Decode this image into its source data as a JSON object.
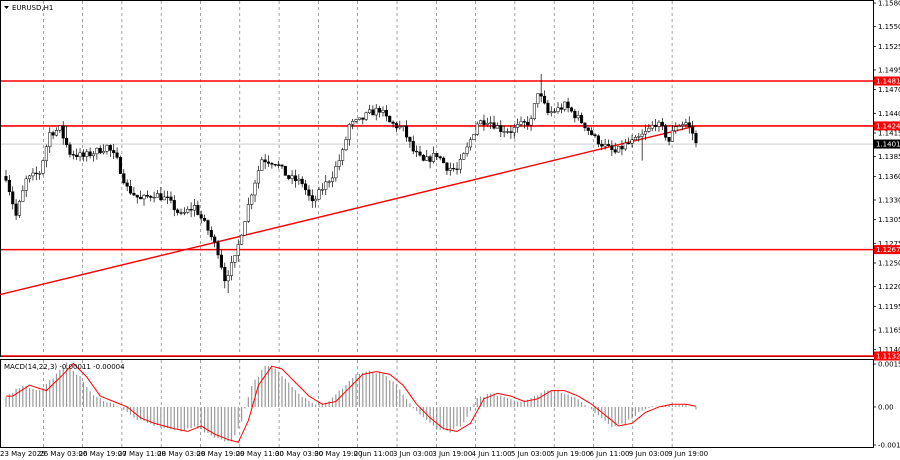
{
  "chart_data": {
    "type": "candlestick",
    "symbol_label": "EURUSD,H1",
    "ylim": [
      1.1132,
      1.158
    ],
    "y_ticks": [
      1.158,
      1.155,
      1.1525,
      1.1495,
      1.147,
      1.144,
      1.1415,
      1.1385,
      1.136,
      1.133,
      1.1305,
      1.1275,
      1.125,
      1.122,
      1.1195,
      1.1165,
      1.114
    ],
    "x_labels": [
      "23 May 2025",
      "26 May 03:00",
      "26 May 19:00",
      "27 May 11:00",
      "28 May 03:00",
      "28 May 19:00",
      "29 May 11:00",
      "30 May 03:00",
      "30 May 19:00",
      "2 Jun 11:00",
      "3 Jun 03:00",
      "3 Jun 19:00",
      "4 Jun 11:00",
      "5 Jun 03:00",
      "5 Jun 19:00",
      "6 Jun 11:00",
      "9 Jun 03:00",
      "9 Jun 19:00"
    ],
    "levels": [
      {
        "value": 1.1481,
        "label": "1.1481",
        "color": "#ff0000"
      },
      {
        "value": 1.1424,
        "label": "1.1424",
        "color": "#ff0000"
      },
      {
        "value": 1.1267,
        "label": "1.1267",
        "color": "#ff0000"
      },
      {
        "value": 1.1132,
        "label": "1.1132",
        "color": "#ff0000"
      }
    ],
    "current_price": {
      "value": 1.1401,
      "label": "1.1401"
    },
    "trendline": {
      "from_bar": 0,
      "from_price": 1.121,
      "to_bar": 205,
      "to_price": 1.1424,
      "color": "#ff0000"
    },
    "bar_count": 206,
    "anchors": [
      [
        0,
        1.136
      ],
      [
        3,
        1.131
      ],
      [
        6,
        1.1355
      ],
      [
        10,
        1.1365
      ],
      [
        13,
        1.1415
      ],
      [
        16,
        1.142
      ],
      [
        19,
        1.139
      ],
      [
        23,
        1.1385
      ],
      [
        27,
        1.1392
      ],
      [
        30,
        1.1398
      ],
      [
        33,
        1.138
      ],
      [
        36,
        1.1345
      ],
      [
        40,
        1.133
      ],
      [
        44,
        1.1338
      ],
      [
        48,
        1.133
      ],
      [
        52,
        1.131
      ],
      [
        56,
        1.1322
      ],
      [
        60,
        1.1292
      ],
      [
        63,
        1.1265
      ],
      [
        65,
        1.123
      ],
      [
        68,
        1.1255
      ],
      [
        70,
        1.129
      ],
      [
        73,
        1.134
      ],
      [
        76,
        1.1382
      ],
      [
        80,
        1.1378
      ],
      [
        84,
        1.1358
      ],
      [
        88,
        1.1352
      ],
      [
        91,
        1.1325
      ],
      [
        94,
        1.1345
      ],
      [
        97,
        1.1362
      ],
      [
        100,
        1.139
      ],
      [
        102,
        1.1425
      ],
      [
        105,
        1.143
      ],
      [
        108,
        1.144
      ],
      [
        111,
        1.1445
      ],
      [
        114,
        1.1428
      ],
      [
        118,
        1.142
      ],
      [
        121,
        1.1392
      ],
      [
        124,
        1.1378
      ],
      [
        128,
        1.1388
      ],
      [
        131,
        1.1372
      ],
      [
        134,
        1.1368
      ],
      [
        137,
        1.1395
      ],
      [
        140,
        1.1428
      ],
      [
        143,
        1.1432
      ],
      [
        147,
        1.142
      ],
      [
        150,
        1.1418
      ],
      [
        153,
        1.1425
      ],
      [
        156,
        1.143
      ],
      [
        158,
        1.1468
      ],
      [
        161,
        1.144
      ],
      [
        164,
        1.1445
      ],
      [
        166,
        1.145
      ],
      [
        169,
        1.1438
      ],
      [
        172,
        1.1425
      ],
      [
        175,
        1.1408
      ],
      [
        178,
        1.1398
      ],
      [
        181,
        1.139
      ],
      [
        184,
        1.14
      ],
      [
        187,
        1.1405
      ],
      [
        190,
        1.1415
      ],
      [
        193,
        1.1428
      ],
      [
        195,
        1.142
      ],
      [
        197,
        1.1405
      ],
      [
        199,
        1.1425
      ],
      [
        202,
        1.1428
      ],
      [
        204,
        1.1415
      ],
      [
        205,
        1.1401
      ]
    ],
    "spikes": [
      {
        "bar": 18,
        "high": 1.1424
      },
      {
        "bar": 66,
        "low": 1.1212
      },
      {
        "bar": 65,
        "low": 1.1218
      },
      {
        "bar": 159,
        "high": 1.149
      },
      {
        "bar": 166,
        "high": 1.1455
      },
      {
        "bar": 189,
        "low": 1.138
      }
    ],
    "macd": {
      "label": "MACD(14,22,3) -0.00011 -0.00004",
      "ylim": [
        -0.0014,
        0.00158
      ],
      "y_ticks": [
        {
          "value": 0.00158,
          "label": "0.00158"
        },
        {
          "value": 0.0,
          "label": "0.00"
        },
        {
          "value": -0.0014,
          "label": "-0.0014"
        }
      ],
      "anchors": [
        [
          0,
          0.0004
        ],
        [
          5,
          0.0008
        ],
        [
          10,
          0.0006
        ],
        [
          15,
          0.0012
        ],
        [
          18,
          0.0016
        ],
        [
          22,
          0.0011
        ],
        [
          26,
          0.0004
        ],
        [
          30,
          0.0002
        ],
        [
          34,
          0.0
        ],
        [
          38,
          -0.0004
        ],
        [
          42,
          -0.0006
        ],
        [
          48,
          -0.0008
        ],
        [
          52,
          -0.0009
        ],
        [
          56,
          -0.0007
        ],
        [
          60,
          -0.001
        ],
        [
          64,
          -0.0012
        ],
        [
          67,
          -0.0013
        ],
        [
          70,
          -0.0005
        ],
        [
          73,
          0.0008
        ],
        [
          77,
          0.0015
        ],
        [
          80,
          0.0014
        ],
        [
          84,
          0.0009
        ],
        [
          88,
          0.0004
        ],
        [
          92,
          0.0001
        ],
        [
          96,
          0.0002
        ],
        [
          100,
          0.0007
        ],
        [
          104,
          0.0012
        ],
        [
          108,
          0.0013
        ],
        [
          112,
          0.0012
        ],
        [
          116,
          0.0008
        ],
        [
          120,
          0.0001
        ],
        [
          124,
          -0.0004
        ],
        [
          128,
          -0.0008
        ],
        [
          132,
          -0.0009
        ],
        [
          136,
          -0.0006
        ],
        [
          140,
          0.0003
        ],
        [
          144,
          0.0005
        ],
        [
          148,
          0.0004
        ],
        [
          152,
          0.0002
        ],
        [
          156,
          0.0003
        ],
        [
          160,
          0.0006
        ],
        [
          164,
          0.0006
        ],
        [
          168,
          0.0004
        ],
        [
          172,
          0.0001
        ],
        [
          176,
          -0.0003
        ],
        [
          180,
          -0.0007
        ],
        [
          184,
          -0.0006
        ],
        [
          188,
          -0.0002
        ],
        [
          192,
          0.0
        ],
        [
          196,
          0.0001
        ],
        [
          200,
          0.0001
        ],
        [
          204,
          0.0
        ],
        [
          205,
          -0.0001
        ]
      ]
    }
  }
}
